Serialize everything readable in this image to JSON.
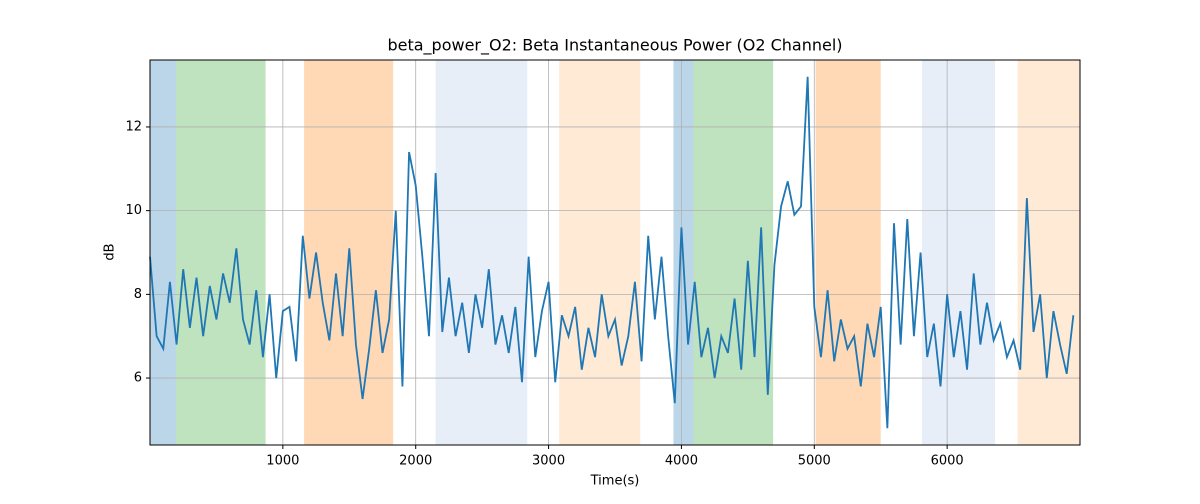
{
  "chart_data": {
    "type": "line",
    "title": "beta_power_O2: Beta Instantaneous Power (O2 Channel)",
    "xlabel": "Time(s)",
    "ylabel": "dB",
    "xlim": [
      0,
      7000
    ],
    "ylim": [
      4.4,
      13.6
    ],
    "xticks": [
      1000,
      2000,
      3000,
      4000,
      5000,
      6000
    ],
    "yticks": [
      6,
      8,
      10,
      12
    ],
    "grid": true,
    "span_opacity": 0.3,
    "spans": [
      {
        "start": 0,
        "end": 195,
        "color": "#1f77b4"
      },
      {
        "start": 195,
        "end": 870,
        "color": "#2ca02c"
      },
      {
        "start": 1160,
        "end": 1830,
        "color": "#ff7f0e"
      },
      {
        "start": 2150,
        "end": 2840,
        "color": "#aec7e8"
      },
      {
        "start": 3080,
        "end": 3690,
        "color": "#ffbb78"
      },
      {
        "start": 3940,
        "end": 4090,
        "color": "#1f77b4"
      },
      {
        "start": 4090,
        "end": 4690,
        "color": "#2ca02c"
      },
      {
        "start": 5010,
        "end": 5500,
        "color": "#ff7f0e"
      },
      {
        "start": 5810,
        "end": 6360,
        "color": "#aec7e8"
      },
      {
        "start": 6530,
        "end": 7000,
        "color": "#ffbb78"
      }
    ],
    "x": [
      0,
      50,
      100,
      150,
      200,
      250,
      300,
      350,
      400,
      450,
      500,
      550,
      600,
      650,
      700,
      750,
      800,
      850,
      900,
      950,
      1000,
      1050,
      1100,
      1150,
      1200,
      1250,
      1300,
      1350,
      1400,
      1450,
      1500,
      1550,
      1600,
      1650,
      1700,
      1750,
      1800,
      1850,
      1900,
      1950,
      2000,
      2050,
      2100,
      2150,
      2200,
      2250,
      2300,
      2350,
      2400,
      2450,
      2500,
      2550,
      2600,
      2650,
      2700,
      2750,
      2800,
      2850,
      2900,
      2950,
      3000,
      3050,
      3100,
      3150,
      3200,
      3250,
      3300,
      3350,
      3400,
      3450,
      3500,
      3550,
      3600,
      3650,
      3700,
      3750,
      3800,
      3850,
      3900,
      3950,
      4000,
      4050,
      4100,
      4150,
      4200,
      4250,
      4300,
      4350,
      4400,
      4450,
      4500,
      4550,
      4600,
      4650,
      4700,
      4750,
      4800,
      4850,
      4900,
      4950,
      5000,
      5050,
      5100,
      5150,
      5200,
      5250,
      5300,
      5350,
      5400,
      5450,
      5500,
      5550,
      5600,
      5650,
      5700,
      5750,
      5800,
      5850,
      5900,
      5950,
      6000,
      6050,
      6100,
      6150,
      6200,
      6250,
      6300,
      6350,
      6400,
      6450,
      6500,
      6550,
      6600,
      6650,
      6700,
      6750,
      6800,
      6850,
      6900,
      6950
    ],
    "series": [
      {
        "name": "beta_power_O2",
        "color": "#1f77b4",
        "values": [
          8.9,
          7.0,
          6.7,
          8.3,
          6.8,
          8.6,
          7.2,
          8.4,
          7.0,
          8.2,
          7.4,
          8.5,
          7.8,
          9.1,
          7.4,
          6.8,
          8.1,
          6.5,
          8.0,
          6.0,
          7.6,
          7.7,
          6.4,
          9.4,
          7.9,
          9.0,
          7.8,
          6.9,
          8.5,
          7.0,
          9.1,
          6.8,
          5.5,
          6.7,
          8.1,
          6.6,
          7.4,
          10.0,
          5.8,
          11.4,
          10.6,
          8.9,
          7.0,
          10.9,
          7.1,
          8.4,
          7.0,
          7.8,
          6.6,
          8.0,
          7.2,
          8.6,
          6.8,
          7.5,
          6.6,
          7.7,
          5.9,
          8.9,
          6.5,
          7.6,
          8.3,
          5.9,
          7.5,
          7.0,
          7.7,
          6.2,
          7.2,
          6.5,
          8.0,
          7.0,
          7.4,
          6.3,
          7.0,
          8.3,
          6.4,
          9.4,
          7.4,
          8.9,
          7.0,
          5.4,
          9.6,
          6.8,
          8.3,
          6.5,
          7.2,
          6.0,
          7.0,
          6.6,
          7.9,
          6.2,
          8.8,
          6.5,
          9.6,
          5.6,
          8.7,
          10.1,
          10.7,
          9.9,
          10.1,
          13.2,
          7.7,
          6.5,
          8.1,
          6.4,
          7.4,
          6.7,
          7.0,
          5.8,
          7.3,
          6.5,
          7.7,
          4.8,
          9.7,
          6.8,
          9.8,
          7.0,
          9.0,
          6.5,
          7.3,
          5.8,
          8.0,
          6.5,
          7.6,
          6.2,
          8.5,
          6.8,
          7.8,
          6.9,
          7.3,
          6.5,
          6.9,
          6.2,
          10.3,
          7.1,
          8.0,
          6.0,
          7.6,
          6.8,
          6.1,
          7.5
        ]
      }
    ]
  }
}
